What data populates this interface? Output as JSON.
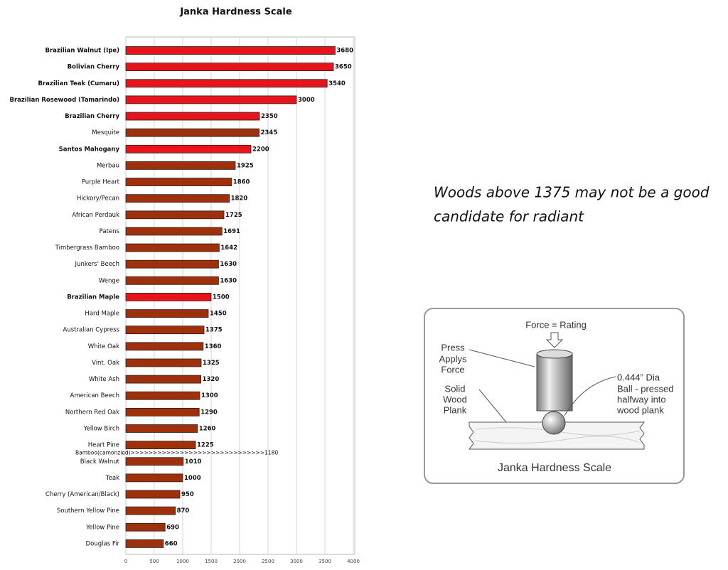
{
  "chart_data": {
    "type": "bar",
    "orientation": "horizontal",
    "title": "Janka Hardness Scale",
    "categories": [
      "Brazilian Walnut (Ipe)",
      "Bolivian Cherry",
      "Brazilian Teak (Cumaru)",
      "Brazilian Rosewood (Tamarindo)",
      "Brazilian Cherry",
      "Mesquite",
      "Santos Mahogany",
      "Merbau",
      "Purple Heart",
      "Hickory/Pecan",
      "African Perdauk",
      "Patens",
      "Timbergrass Bamboo",
      "Junkers' Beech",
      "Wenge",
      "Brazilian Maple",
      "Hard Maple",
      "Australian Cypress",
      "White Oak",
      "Vint. Oak",
      "White Ash",
      "American Beech",
      "Northern Red Oak",
      "Yellow Birch",
      "Heart Pine",
      "Black Walnut",
      "Teak",
      "Cherry (American/Black)",
      "Southern Yellow Pine",
      "Yellow Pine",
      "Douglas Fir"
    ],
    "values": [
      3680,
      3650,
      3540,
      3000,
      2350,
      2345,
      2200,
      1925,
      1860,
      1820,
      1725,
      1691,
      1642,
      1630,
      1630,
      1500,
      1450,
      1375,
      1360,
      1325,
      1320,
      1300,
      1290,
      1260,
      1225,
      1010,
      1000,
      950,
      870,
      690,
      660
    ],
    "highlighted": [
      true,
      true,
      true,
      true,
      true,
      false,
      true,
      false,
      false,
      false,
      false,
      false,
      false,
      false,
      false,
      true,
      false,
      false,
      false,
      false,
      false,
      false,
      false,
      false,
      false,
      false,
      false,
      false,
      false,
      false,
      false
    ],
    "color": "#a0300c",
    "highlight_color": "#e8141c",
    "annotation": "Bamboo(camonzied)>>>>>>>>>>>>>>>>>>>>>>>>>>>>>>1180",
    "xlim": [
      0,
      4000
    ],
    "xticks": [
      0,
      500,
      1000,
      1500,
      2000,
      2500,
      3000,
      3500,
      4000
    ],
    "grid": true
  },
  "note": [
    "Woods above 1375 may not be a good",
    "candidate for radiant"
  ],
  "diagram": {
    "force": "Force = Rating",
    "press": [
      "Press",
      "Applys",
      "Force"
    ],
    "plank": [
      "Solid",
      "Wood",
      "Plank"
    ],
    "ball": [
      "0.444” Dia",
      "Ball - pressed",
      "halfway into",
      "wood plank"
    ],
    "caption": "Janka Hardness Scale"
  }
}
